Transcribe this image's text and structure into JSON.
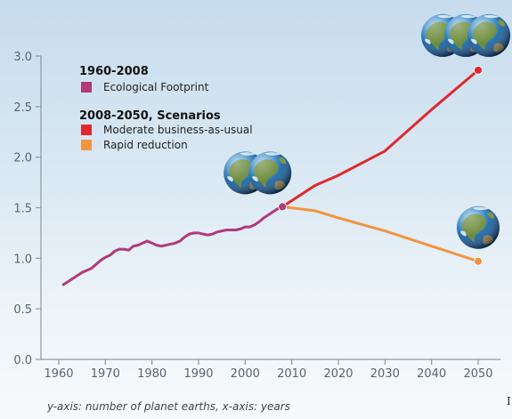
{
  "chart_data": {
    "type": "line",
    "title": "",
    "xlabel": "",
    "ylabel": "",
    "xlim": [
      1960,
      2050
    ],
    "ylim": [
      0,
      3.0
    ],
    "x_ticks": [
      "1960",
      "1970",
      "1980",
      "1990",
      "2000",
      "2010",
      "2020",
      "2030",
      "2040",
      "2050"
    ],
    "y_ticks": [
      "0.0",
      "0.5",
      "1.0",
      "1.5",
      "2.0",
      "2.5",
      "3.0"
    ],
    "legend": {
      "group1_heading": "1960-2008",
      "group1_items": [
        {
          "label": "Ecological Footprint",
          "color": "#b03a7a"
        }
      ],
      "group2_heading": "2008-2050, Scenarios",
      "group2_items": [
        {
          "label": "Moderate business-as-usual",
          "color": "#e0282e"
        },
        {
          "label": "Rapid reduction",
          "color": "#f0953f"
        }
      ]
    },
    "series": [
      {
        "name": "Ecological Footprint",
        "color": "#b03a7a",
        "x": [
          1961,
          1962,
          1963,
          1964,
          1965,
          1966,
          1967,
          1968,
          1969,
          1970,
          1971,
          1972,
          1973,
          1974,
          1975,
          1976,
          1977,
          1978,
          1979,
          1980,
          1981,
          1982,
          1983,
          1984,
          1985,
          1986,
          1987,
          1988,
          1989,
          1990,
          1991,
          1992,
          1993,
          1994,
          1995,
          1996,
          1997,
          1998,
          1999,
          2000,
          2001,
          2002,
          2003,
          2004,
          2005,
          2006,
          2007,
          2008
        ],
        "y": [
          0.74,
          0.77,
          0.8,
          0.83,
          0.86,
          0.88,
          0.9,
          0.94,
          0.98,
          1.01,
          1.03,
          1.07,
          1.09,
          1.09,
          1.08,
          1.12,
          1.13,
          1.15,
          1.17,
          1.15,
          1.13,
          1.12,
          1.13,
          1.14,
          1.15,
          1.17,
          1.21,
          1.24,
          1.25,
          1.25,
          1.24,
          1.23,
          1.24,
          1.26,
          1.27,
          1.28,
          1.28,
          1.28,
          1.29,
          1.31,
          1.31,
          1.33,
          1.36,
          1.4,
          1.43,
          1.46,
          1.49,
          1.51
        ]
      },
      {
        "name": "Moderate business-as-usual",
        "color": "#e0282e",
        "x": [
          2008,
          2015,
          2020,
          2030,
          2040,
          2050
        ],
        "y": [
          1.51,
          1.72,
          1.82,
          2.06,
          2.47,
          2.86
        ]
      },
      {
        "name": "Rapid reduction",
        "color": "#f0953f",
        "x": [
          2008,
          2015,
          2020,
          2030,
          2040,
          2050
        ],
        "y": [
          1.51,
          1.47,
          1.4,
          1.27,
          1.12,
          0.97
        ]
      }
    ],
    "markers": [
      {
        "x": 2008,
        "y": 1.51,
        "color": "#b03a7a"
      },
      {
        "x": 2050,
        "y": 2.86,
        "color": "#e0282e"
      },
      {
        "x": 2050,
        "y": 0.97,
        "color": "#f0953f"
      }
    ],
    "earth_icons": [
      {
        "x": 2008,
        "y": 1.51,
        "count": 2
      },
      {
        "x": 2050,
        "y": 2.86,
        "count": 3
      },
      {
        "x": 2050,
        "y": 0.97,
        "count": 1
      }
    ],
    "grid": false
  },
  "caption": "y-axis: number of planet earths, x-axis: years",
  "edge_mark": "I"
}
